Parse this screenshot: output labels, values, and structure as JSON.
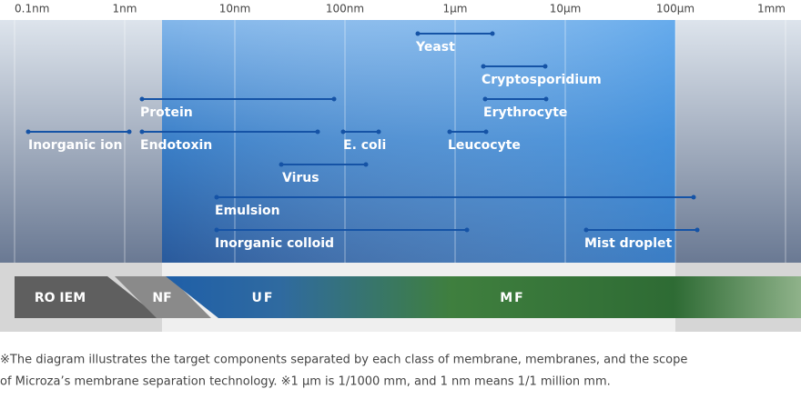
{
  "axis": {
    "ticks": [
      "0.1nm",
      "1nm",
      "10nm",
      "100nm",
      "1µm",
      "10µm",
      "100µm",
      "1mm"
    ]
  },
  "items": [
    {
      "label": "Yeast"
    },
    {
      "label": "Cryptosporidium"
    },
    {
      "label": "Protein"
    },
    {
      "label": "Erythrocyte"
    },
    {
      "label": "Inorganic ion"
    },
    {
      "label": "Endotoxin"
    },
    {
      "label": "E. coli"
    },
    {
      "label": "Leucocyte"
    },
    {
      "label": "Virus"
    },
    {
      "label": "Emulsion"
    },
    {
      "label": "Inorganic colloid"
    },
    {
      "label": "Mist droplet"
    }
  ],
  "membranes": [
    "RO IEM",
    "NF",
    "UF",
    "MF"
  ],
  "note": [
    "※The diagram illustrates the target components separated by each class of membrane, membranes, and the scope",
    "of Microza’s membrane separation technology. ※1 µm is 1/1000 mm, and 1 nm means 1/1 million mm."
  ]
}
